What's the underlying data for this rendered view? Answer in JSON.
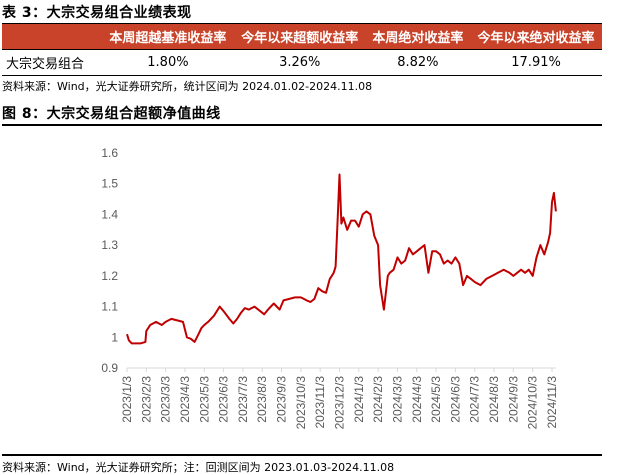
{
  "table3": {
    "title": "表 3：大宗交易组合业绩表现",
    "header_color": "#c8432a",
    "columns": [
      "",
      "本周超越基准收益率",
      "今年以来超额收益率",
      "本周绝对收益率",
      "今年以来绝对收益率"
    ],
    "rows": [
      {
        "label": "大宗交易组合",
        "values": [
          "1.80%",
          "3.26%",
          "8.82%",
          "17.91%"
        ]
      }
    ],
    "source": "资料来源：Wind，光大证券研究所，统计区间为 2024.01.02-2024.11.08"
  },
  "figure8": {
    "title": "图 8：大宗交易组合超额净值曲线",
    "source": "资料来源：Wind，光大证券研究所；注：回测区间为 2023.01.03-2024.11.08"
  },
  "chart_data": {
    "type": "line",
    "title": "大宗交易组合超额净值曲线",
    "xlabel": "",
    "ylabel": "",
    "ylim": [
      0.9,
      1.6
    ],
    "yticks": [
      "1.6",
      "1.5",
      "1.4",
      "1.3",
      "1.2",
      "1.1",
      "1",
      "0.9"
    ],
    "grid": false,
    "legend": "none",
    "line_color": "#c00000",
    "categories": [
      "2023/1/3",
      "2023/2/3",
      "2023/3/3",
      "2023/4/3",
      "2023/5/3",
      "2023/6/3",
      "2023/7/3",
      "2023/8/3",
      "2023/9/3",
      "2023/10/3",
      "2023/11/3",
      "2023/12/3",
      "2024/1/3",
      "2024/2/3",
      "2024/3/3",
      "2024/4/3",
      "2024/5/3",
      "2024/6/3",
      "2024/7/3",
      "2024/8/3",
      "2024/9/3",
      "2024/10/3",
      "2024/11/3"
    ],
    "series": [
      {
        "name": "大宗交易组合超额净值",
        "x_index": [
          0,
          0.1,
          0.25,
          0.5,
          0.7,
          0.95,
          1.0,
          1.2,
          1.5,
          1.8,
          2.0,
          2.3,
          2.6,
          2.9,
          3.1,
          3.3,
          3.5,
          3.7,
          3.85,
          4.0,
          4.2,
          4.5,
          4.8,
          5.0,
          5.3,
          5.5,
          5.7,
          5.9,
          6.1,
          6.3,
          6.6,
          6.9,
          7.1,
          7.3,
          7.6,
          7.9,
          8.1,
          8.4,
          8.7,
          9.0,
          9.3,
          9.5,
          9.7,
          9.9,
          10.1,
          10.3,
          10.5,
          10.6,
          10.7,
          10.8,
          10.9,
          11.0,
          11.1,
          11.2,
          11.4,
          11.6,
          11.8,
          12.0,
          12.2,
          12.4,
          12.6,
          12.8,
          13.0,
          13.1,
          13.3,
          13.5,
          13.6,
          13.8,
          14.0,
          14.2,
          14.4,
          14.6,
          14.8,
          15.0,
          15.2,
          15.4,
          15.6,
          15.8,
          16.0,
          16.2,
          16.4,
          16.6,
          16.8,
          17.0,
          17.2,
          17.4,
          17.6,
          17.8,
          18.0,
          18.3,
          18.6,
          18.9,
          19.2,
          19.5,
          19.8,
          20.0,
          20.2,
          20.4,
          20.6,
          20.8,
          21.0,
          21.2,
          21.4,
          21.6,
          21.8,
          21.9,
          22.0,
          22.1,
          22.2
        ],
        "values": [
          1.01,
          0.99,
          0.98,
          0.98,
          0.98,
          0.985,
          1.02,
          1.04,
          1.05,
          1.04,
          1.05,
          1.06,
          1.055,
          1.05,
          1.0,
          0.995,
          0.985,
          1.01,
          1.03,
          1.04,
          1.05,
          1.07,
          1.1,
          1.085,
          1.06,
          1.045,
          1.06,
          1.08,
          1.095,
          1.09,
          1.1,
          1.085,
          1.075,
          1.09,
          1.11,
          1.09,
          1.12,
          1.125,
          1.13,
          1.13,
          1.12,
          1.115,
          1.125,
          1.16,
          1.15,
          1.145,
          1.19,
          1.2,
          1.21,
          1.23,
          1.38,
          1.53,
          1.37,
          1.39,
          1.35,
          1.38,
          1.38,
          1.36,
          1.4,
          1.41,
          1.4,
          1.33,
          1.3,
          1.17,
          1.09,
          1.2,
          1.21,
          1.22,
          1.26,
          1.24,
          1.25,
          1.29,
          1.27,
          1.28,
          1.29,
          1.3,
          1.21,
          1.28,
          1.28,
          1.27,
          1.24,
          1.25,
          1.24,
          1.26,
          1.24,
          1.17,
          1.2,
          1.19,
          1.18,
          1.17,
          1.19,
          1.2,
          1.21,
          1.22,
          1.21,
          1.2,
          1.21,
          1.22,
          1.21,
          1.22,
          1.2,
          1.26,
          1.3,
          1.27,
          1.31,
          1.34,
          1.44,
          1.47,
          1.41,
          1.43
        ]
      }
    ]
  }
}
